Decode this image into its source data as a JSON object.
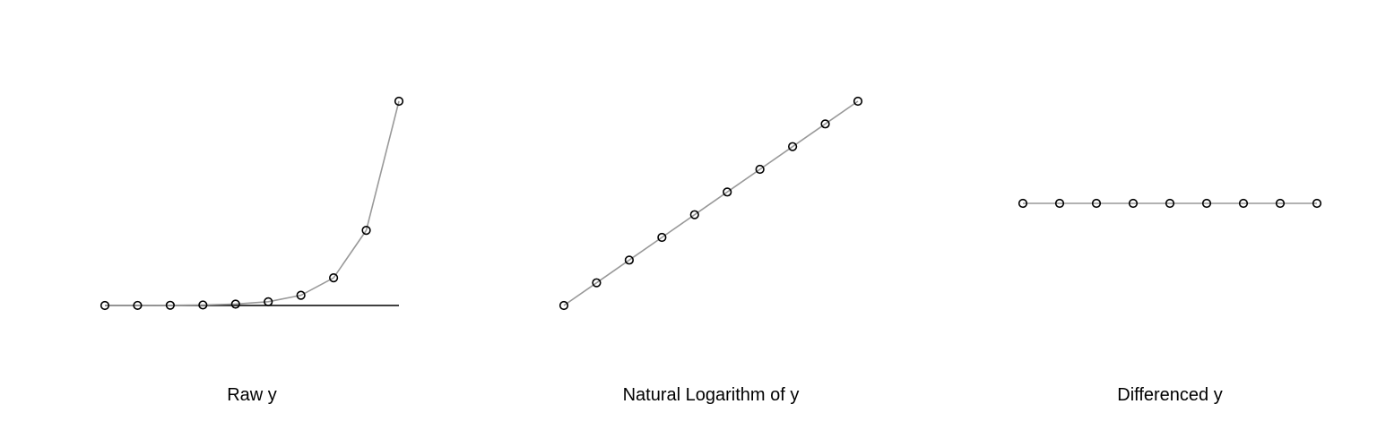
{
  "chart_data": [
    {
      "type": "line",
      "title": "Raw y",
      "x": [
        1,
        2,
        3,
        4,
        5,
        6,
        7,
        8,
        9,
        10
      ],
      "series": [
        {
          "values": [
            1,
            2.72,
            7.39,
            20.09,
            54.6,
            148.41,
            403.43,
            1096.63,
            2980.96,
            8103.08
          ]
        }
      ],
      "xlim": [
        1,
        10
      ],
      "ylim": [
        0,
        8103.08
      ],
      "baseline": 0,
      "grid": false,
      "axes_visible": false,
      "marker": "open-circle",
      "colors": {
        "line": "#999999",
        "marker": "#000000",
        "baseline": "#000000"
      }
    },
    {
      "type": "line",
      "title": "Natural Logarithm of y",
      "x": [
        1,
        2,
        3,
        4,
        5,
        6,
        7,
        8,
        9,
        10
      ],
      "series": [
        {
          "values": [
            0,
            1,
            2,
            3,
            4,
            5,
            6,
            7,
            8,
            9
          ]
        }
      ],
      "xlim": [
        1,
        10
      ],
      "ylim": [
        0,
        9
      ],
      "grid": false,
      "axes_visible": false,
      "marker": "open-circle",
      "colors": {
        "line": "#999999",
        "marker": "#000000"
      }
    },
    {
      "type": "line",
      "title": "Differenced y",
      "x": [
        2,
        3,
        4,
        5,
        6,
        7,
        8,
        9,
        10
      ],
      "series": [
        {
          "values": [
            1,
            1,
            1,
            1,
            1,
            1,
            1,
            1,
            1
          ]
        }
      ],
      "xlim": [
        2,
        10
      ],
      "ylim": [
        0,
        2
      ],
      "grid": false,
      "axes_visible": false,
      "marker": "open-circle",
      "colors": {
        "line": "#999999",
        "marker": "#000000"
      }
    }
  ]
}
